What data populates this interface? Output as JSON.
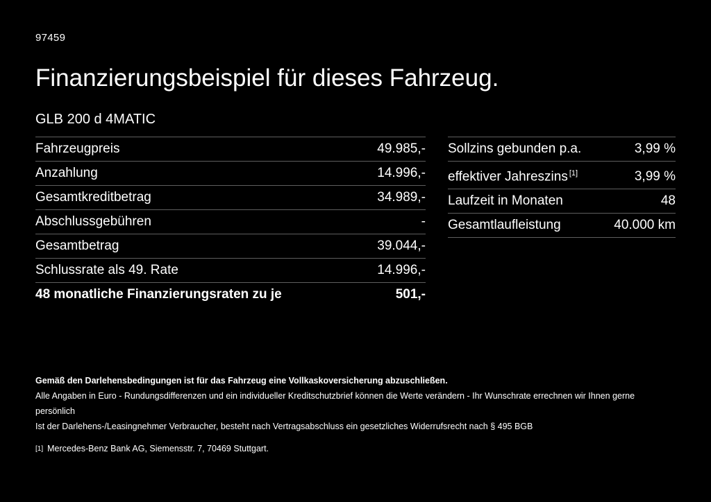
{
  "page": {
    "code": "97459",
    "title": "Finanzierungsbeispiel für dieses Fahrzeug.",
    "model": "GLB 200 d 4MATIC"
  },
  "finance_table": {
    "rows": [
      {
        "label": "Fahrzeugpreis",
        "value": "49.985,-"
      },
      {
        "label": "Anzahlung",
        "value": "14.996,-"
      },
      {
        "label": "Gesamtkreditbetrag",
        "value": "34.989,-"
      },
      {
        "label": "Abschlussgebühren",
        "value": "-"
      },
      {
        "label": "Gesamtbetrag",
        "value": "39.044,-"
      },
      {
        "label": "Schlussrate als 49. Rate",
        "value": "14.996,-"
      },
      {
        "label": "48 monatliche Finanzierungsraten zu je",
        "value": "501,-"
      }
    ]
  },
  "conditions_table": {
    "rows": [
      {
        "label": "Sollzins gebunden p.a.",
        "value": "3,99 %"
      },
      {
        "label": "effektiver Jahreszins",
        "sup": "[1]",
        "value": "3,99 %"
      },
      {
        "label": "Laufzeit in Monaten",
        "value": "48"
      },
      {
        "label": "Gesamtlaufleistung",
        "value": "40.000 km"
      }
    ]
  },
  "footnotes": {
    "insurance_note": "Gemäß den Darlehensbedingungen ist für das Fahrzeug eine Vollkaskoversicherung abzuschließen.",
    "euro_note": "Alle Angaben in Euro - Rundungsdifferenzen und ein individueller Kreditschutzbrief können die Werte verändern - Ihr Wunschrate errechnen wir Ihnen gerne persönlich",
    "withdrawal_note": "Ist der Darlehens-/Leasingnehmer Verbraucher, besteht nach Vertragsabschluss ein gesetzliches Widerrufsrecht nach § 495 BGB",
    "bank_ref_marker": "[1]",
    "bank_note": "Mercedes-Benz Bank AG, Siemensstr. 7, 70469 Stuttgart."
  },
  "colors": {
    "background": "#000000",
    "text": "#ffffff",
    "divider": "#5f5f5f"
  }
}
